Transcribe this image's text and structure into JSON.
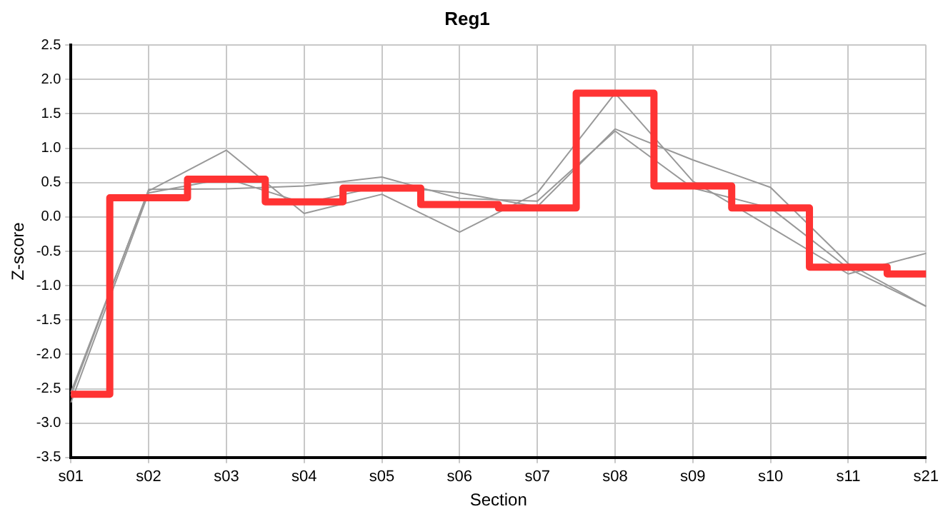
{
  "chart_data": {
    "type": "line",
    "title": "Reg1",
    "xlabel": "Section",
    "ylabel": "Z-score",
    "categories": [
      "s01",
      "s02",
      "s03",
      "s04",
      "s05",
      "s06",
      "s07",
      "s08",
      "s09",
      "s10",
      "s11",
      "s21"
    ],
    "series": [
      {
        "color": "#999999",
        "values": [
          -2.55,
          0.38,
          0.97,
          0.05,
          0.33,
          -0.22,
          0.35,
          1.8,
          0.52,
          -0.15,
          -0.83,
          -0.53
        ]
      },
      {
        "color": "#999999",
        "values": [
          -2.7,
          0.35,
          0.56,
          0.2,
          0.45,
          0.35,
          0.15,
          1.28,
          0.83,
          0.43,
          -0.68,
          -1.3
        ]
      },
      {
        "color": "#999999",
        "values": [
          -2.6,
          0.4,
          0.41,
          0.45,
          0.58,
          0.27,
          0.23,
          1.25,
          0.42,
          0.13,
          -0.75,
          -1.3
        ]
      },
      {
        "type": "step",
        "color": "#ff3333",
        "values": [
          -2.58,
          0.28,
          0.55,
          0.22,
          0.42,
          0.18,
          0.13,
          1.8,
          0.45,
          0.13,
          -0.73,
          -0.83
        ]
      }
    ],
    "ylim": [
      -3.5,
      2.5
    ],
    "yticks": [
      -3.5,
      {
        "value": -3,
        "label": "-3.0"
      },
      -2.5,
      {
        "value": -2,
        "label": "-2.0"
      },
      -1.5,
      {
        "value": -1,
        "label": "-1.0"
      },
      -0.5,
      {
        "value": 0,
        "label": "0.0"
      },
      0.5,
      {
        "value": 1,
        "label": "1.0"
      },
      1.5,
      {
        "value": 2,
        "label": "2.0"
      },
      2.5
    ],
    "grid": true,
    "legend": false,
    "marker": "none"
  }
}
